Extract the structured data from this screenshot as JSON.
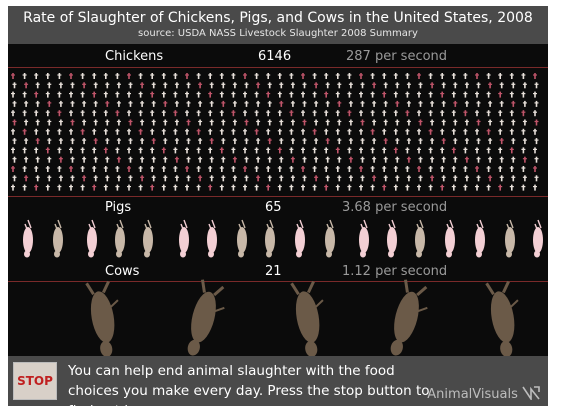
{
  "header": {
    "title": "Rate of Slaughter of Chickens, Pigs, and Cows in the United States, 2008",
    "source": "source:  USDA NASS Livestock Slaughter 2008 Summary"
  },
  "rows": {
    "chickens": {
      "label": "Chickens",
      "count": "6146",
      "rate": "287 per second"
    },
    "pigs": {
      "label": "Pigs",
      "count": "65",
      "rate": "3.68 per second"
    },
    "cows": {
      "label": "Cows",
      "count": "21",
      "rate": "1.12 per second"
    }
  },
  "footer": {
    "stop_label": "STOP",
    "message": "You can help end animal slaughter with the food choices you make every day. Press the stop button to find out how.",
    "brand": "AnimalVisuals"
  },
  "colors": {
    "background": "#0b0b0b",
    "bar": "#4a4a4a",
    "rule": "#7a2a2a",
    "chicken": "#e8e0da",
    "chicken_accent": "#c0556a",
    "pig_pink": "#f3cfd4",
    "pig_tan": "#c8b8a8",
    "cow": "#6b5a48",
    "stop_text": "#c02020"
  },
  "icons": [
    "chicken-icon",
    "pig-icon",
    "cow-icon",
    "animalvisuals-logo-icon"
  ]
}
